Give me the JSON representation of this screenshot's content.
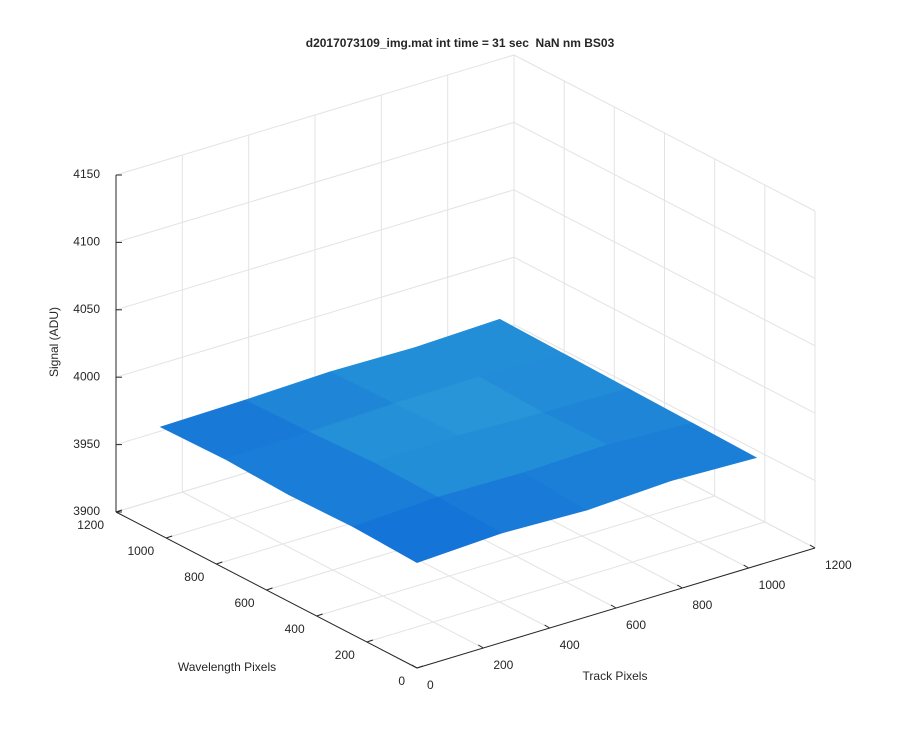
{
  "chart_data": {
    "type": "surface",
    "title": "d2017073109_img.mat int time = 31 sec  NaN nm BS03",
    "xlabel": "Track Pixels",
    "ylabel": "Wavelength Pixels",
    "zlabel": "Signal (ADU)",
    "x": [
      1,
      256,
      512,
      768,
      1024
    ],
    "y": [
      1,
      256,
      512,
      768,
      1024
    ],
    "z": [
      [
        3978,
        3981,
        3979,
        3982,
        3980
      ],
      [
        3980,
        3983,
        3982,
        3984,
        3981
      ],
      [
        3979,
        3984,
        3985,
        3983,
        3982
      ],
      [
        3981,
        3982,
        3984,
        3985,
        3983
      ],
      [
        3980,
        3981,
        3983,
        3982,
        3984
      ]
    ],
    "colormap": [
      "#0a5fd6",
      "#2a9bd8"
    ],
    "xlim": [
      0,
      1200
    ],
    "ylim": [
      0,
      1200
    ],
    "zlim": [
      3900,
      4150
    ],
    "xticks": [
      0,
      200,
      400,
      600,
      800,
      1000,
      1200
    ],
    "yticks": [
      0,
      200,
      400,
      600,
      800,
      1000,
      1200
    ],
    "zticks": [
      3900,
      3950,
      4000,
      4050,
      4100,
      4150
    ],
    "grid": true
  }
}
